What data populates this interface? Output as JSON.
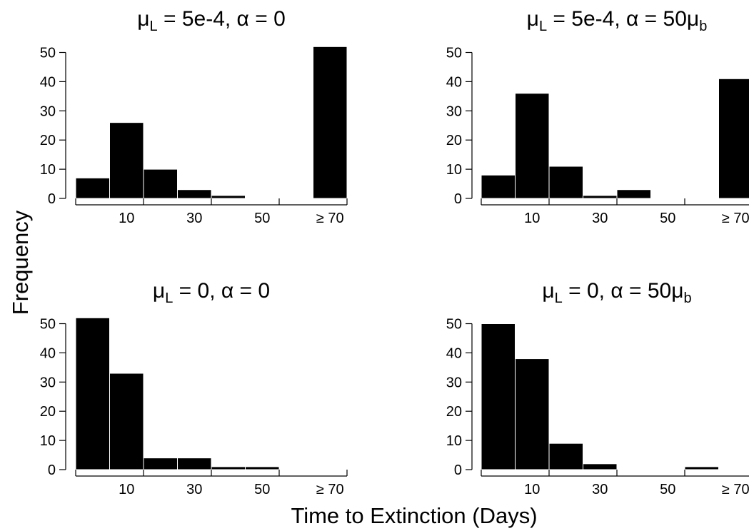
{
  "figure": {
    "ylabel": "Frequency",
    "xlabel": "Time to Extinction (Days)"
  },
  "chart_data": [
    {
      "type": "bar",
      "title_parts": {
        "pre": "μ",
        "sub1": "L",
        "mid": " = 5e-4, α = 0",
        "sub2": ""
      },
      "bin_width": 10,
      "x_tick_labels": [
        "10",
        "30",
        "50",
        "≥ 70"
      ],
      "y_ticks": [
        0,
        10,
        20,
        30,
        40,
        50
      ],
      "ylim": [
        0,
        52
      ],
      "bins": [
        {
          "x0": 0,
          "x1": 10,
          "value": 7
        },
        {
          "x0": 10,
          "x1": 20,
          "value": 26
        },
        {
          "x0": 20,
          "x1": 30,
          "value": 10
        },
        {
          "x0": 30,
          "x1": 40,
          "value": 3
        },
        {
          "x0": 40,
          "x1": 50,
          "value": 1
        },
        {
          "x0": 70,
          "x1": 80,
          "value": 52
        }
      ]
    },
    {
      "type": "bar",
      "title_parts": {
        "pre": "μ",
        "sub1": "L",
        "mid": " = 5e-4, α = 50μ",
        "sub2": "b"
      },
      "bin_width": 10,
      "x_tick_labels": [
        "10",
        "30",
        "50",
        "≥ 70"
      ],
      "y_ticks": [
        0,
        10,
        20,
        30,
        40,
        50
      ],
      "ylim": [
        0,
        52
      ],
      "bins": [
        {
          "x0": 0,
          "x1": 10,
          "value": 8
        },
        {
          "x0": 10,
          "x1": 20,
          "value": 36
        },
        {
          "x0": 20,
          "x1": 30,
          "value": 11
        },
        {
          "x0": 30,
          "x1": 40,
          "value": 1
        },
        {
          "x0": 40,
          "x1": 50,
          "value": 3
        },
        {
          "x0": 70,
          "x1": 80,
          "value": 41
        }
      ]
    },
    {
      "type": "bar",
      "title_parts": {
        "pre": "μ",
        "sub1": "L",
        "mid": " = 0, α = 0",
        "sub2": ""
      },
      "bin_width": 10,
      "x_tick_labels": [
        "10",
        "30",
        "50",
        "≥ 70"
      ],
      "y_ticks": [
        0,
        10,
        20,
        30,
        40,
        50
      ],
      "ylim": [
        0,
        52
      ],
      "bins": [
        {
          "x0": 0,
          "x1": 10,
          "value": 52
        },
        {
          "x0": 10,
          "x1": 20,
          "value": 33
        },
        {
          "x0": 20,
          "x1": 30,
          "value": 4
        },
        {
          "x0": 30,
          "x1": 40,
          "value": 4
        },
        {
          "x0": 40,
          "x1": 50,
          "value": 1
        },
        {
          "x0": 50,
          "x1": 60,
          "value": 1
        }
      ]
    },
    {
      "type": "bar",
      "title_parts": {
        "pre": "μ",
        "sub1": "L",
        "mid": " = 0, α = 50μ",
        "sub2": "b"
      },
      "bin_width": 10,
      "x_tick_labels": [
        "10",
        "30",
        "50",
        "≥ 70"
      ],
      "y_ticks": [
        0,
        10,
        20,
        30,
        40,
        50
      ],
      "ylim": [
        0,
        52
      ],
      "bins": [
        {
          "x0": 0,
          "x1": 10,
          "value": 50
        },
        {
          "x0": 10,
          "x1": 20,
          "value": 38
        },
        {
          "x0": 20,
          "x1": 30,
          "value": 9
        },
        {
          "x0": 30,
          "x1": 40,
          "value": 2
        },
        {
          "x0": 60,
          "x1": 70,
          "value": 1
        }
      ]
    }
  ]
}
